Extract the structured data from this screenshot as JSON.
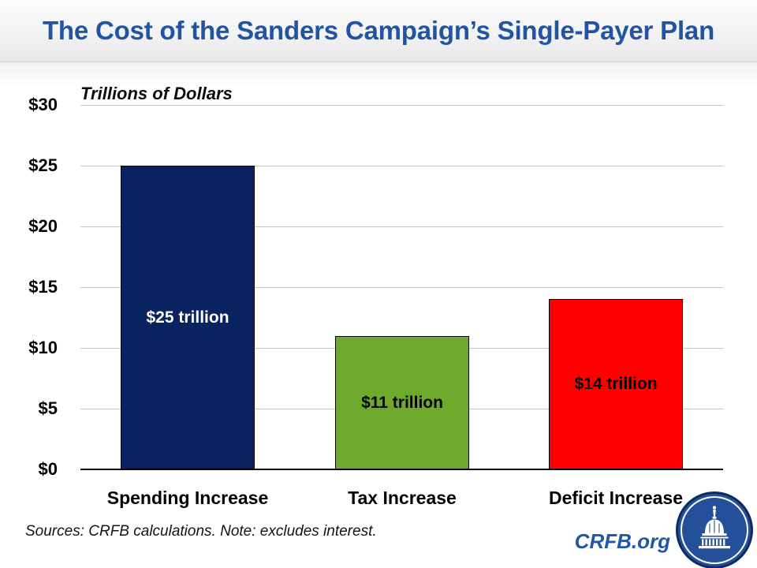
{
  "header": {
    "title": "The Cost of the Sanders Campaign’s Single-Payer Plan"
  },
  "chart_data": {
    "type": "bar",
    "title": "The Cost of the Sanders Campaign’s Single-Payer Plan",
    "categories": [
      "Spending Increase",
      "Tax Increase",
      "Deficit Increase"
    ],
    "values": [
      25,
      11,
      14
    ],
    "bar_labels": [
      "$25 trillion",
      "$11 trillion",
      "$14 trillion"
    ],
    "bar_colors": [
      "#08235f",
      "#6daa2c",
      "#ff0000"
    ],
    "bar_label_colors": [
      "#ffffff",
      "#000000",
      "#000000"
    ],
    "xlabel": "",
    "ylabel": "Trillions of Dollars",
    "ylim": [
      0,
      30
    ],
    "ytick_step": 5,
    "ytick_labels": [
      "$0",
      "$5",
      "$10",
      "$15",
      "$20",
      "$25",
      "$30"
    ],
    "grid": true,
    "legend": false
  },
  "footer": {
    "source_note": "Sources: CRFB calculations. Note: excludes interest.",
    "link_label": "CRFB.org",
    "logo_icon": "capitol-building-icon"
  },
  "colors": {
    "title_blue": "#2155a4",
    "link_blue": "#2156a8",
    "navy_bar": "#08235f",
    "green_bar": "#6daa2c",
    "red_bar": "#ff0000",
    "gridline": "#c6c6c6",
    "logo_blue": "#24509a",
    "logo_edge": "#0d2b5e"
  }
}
